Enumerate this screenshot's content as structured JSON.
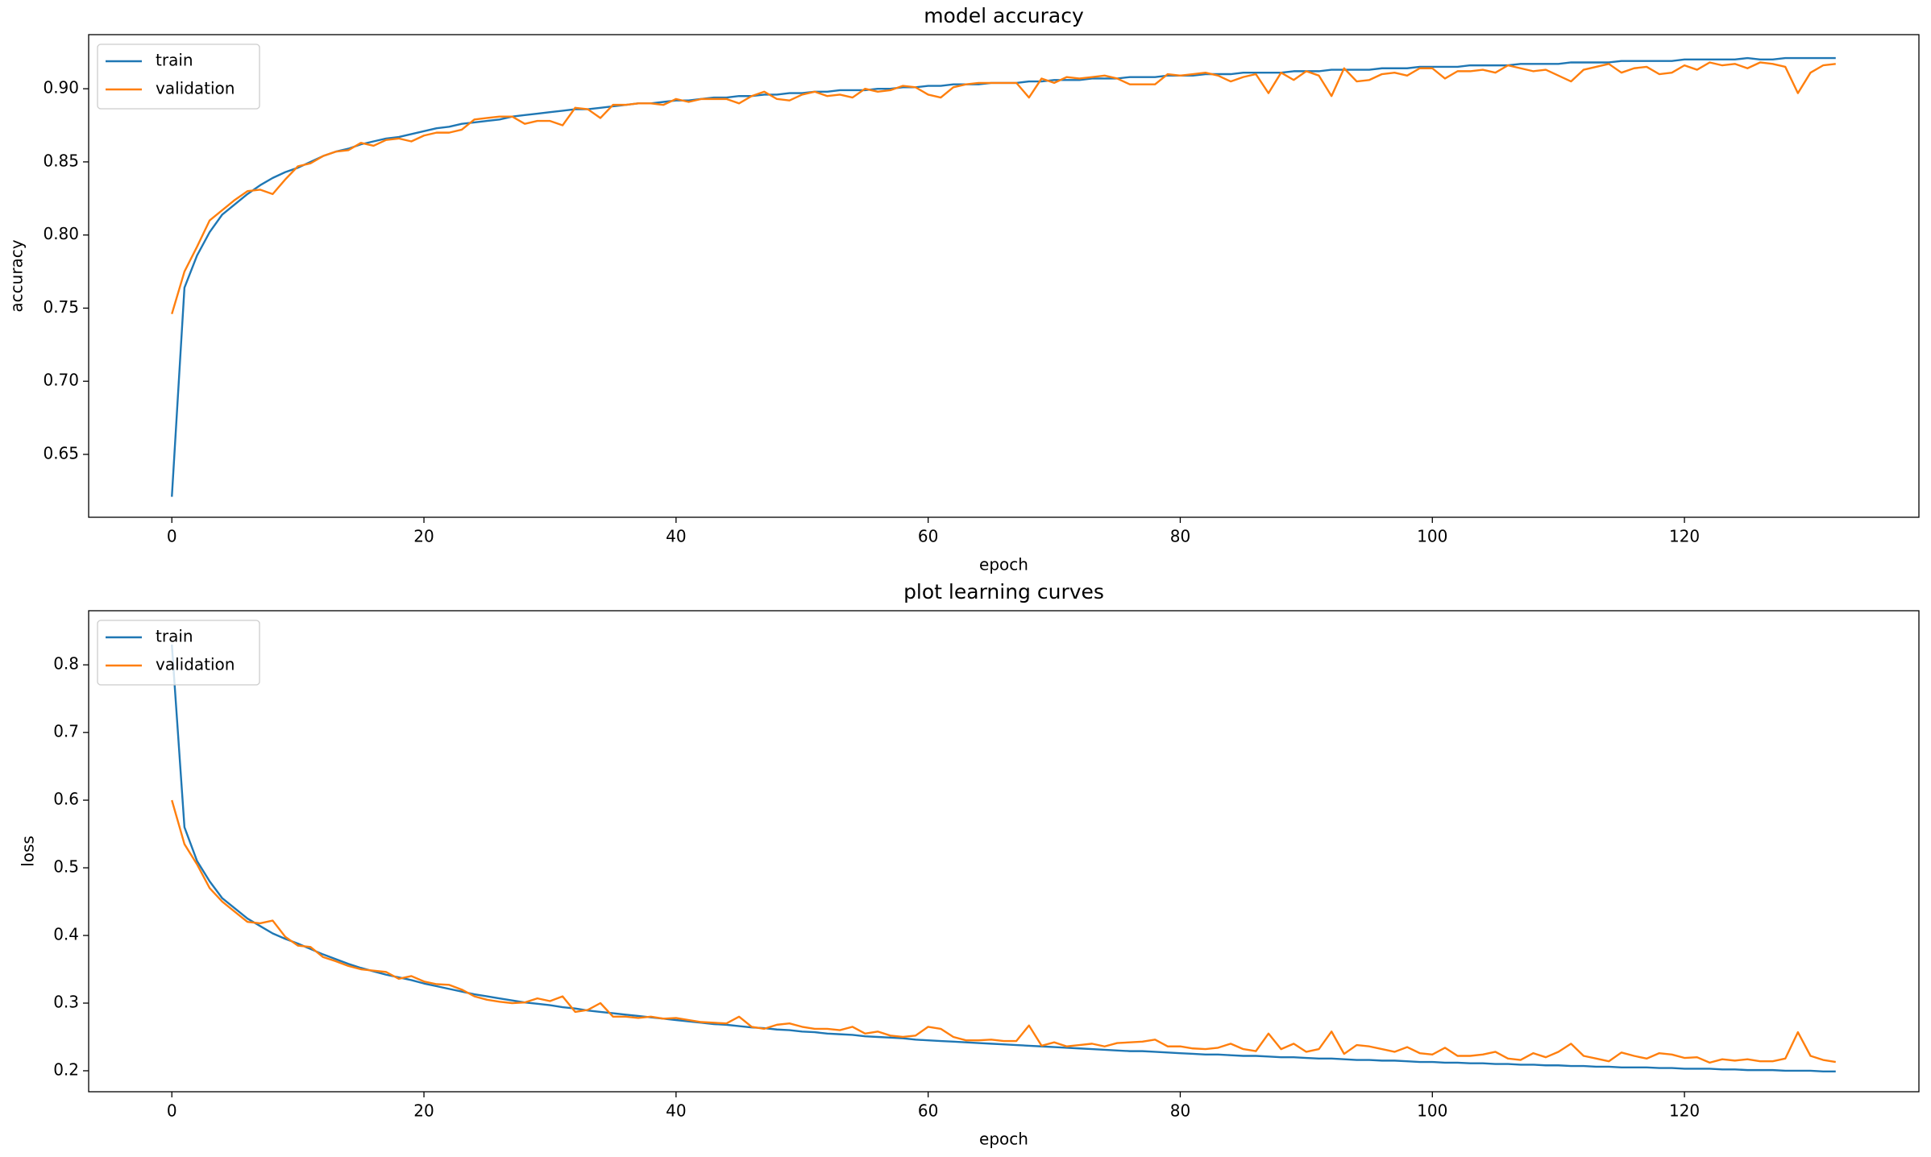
{
  "chart_data": [
    {
      "type": "line",
      "title": "model accuracy",
      "x_label": "epoch",
      "y_label": "accuracy",
      "x": [
        0,
        1,
        2,
        3,
        4,
        5,
        6,
        7,
        8,
        9,
        10,
        11,
        12,
        13,
        14,
        15,
        16,
        17,
        18,
        19,
        20,
        21,
        22,
        23,
        24,
        25,
        26,
        27,
        28,
        29,
        30,
        31,
        32,
        33,
        34,
        35,
        36,
        37,
        38,
        39,
        40,
        41,
        42,
        43,
        44,
        45,
        46,
        47,
        48,
        49,
        50,
        51,
        52,
        53,
        54,
        55,
        56,
        57,
        58,
        59,
        60,
        61,
        62,
        63,
        64,
        65,
        66,
        67,
        68,
        69,
        70,
        71,
        72,
        73,
        74,
        75,
        76,
        77,
        78,
        79,
        80,
        81,
        82,
        83,
        84,
        85,
        86,
        87,
        88,
        89,
        90,
        91,
        92,
        93,
        94,
        95,
        96,
        97,
        98,
        99,
        100,
        101,
        102,
        103,
        104,
        105,
        106,
        107,
        108,
        109,
        110,
        111,
        112,
        113,
        114,
        115,
        116,
        117,
        118,
        119,
        120,
        121,
        122,
        123,
        124,
        125,
        126,
        127,
        128,
        129,
        130,
        131,
        132
      ],
      "series": [
        {
          "name": "train",
          "color": "#1f77b4",
          "values": [
            0.621,
            0.764,
            0.786,
            0.802,
            0.814,
            0.821,
            0.828,
            0.834,
            0.839,
            0.843,
            0.846,
            0.85,
            0.854,
            0.857,
            0.859,
            0.862,
            0.864,
            0.866,
            0.867,
            0.869,
            0.871,
            0.873,
            0.874,
            0.876,
            0.877,
            0.878,
            0.879,
            0.881,
            0.882,
            0.883,
            0.884,
            0.885,
            0.886,
            0.886,
            0.887,
            0.888,
            0.889,
            0.89,
            0.89,
            0.891,
            0.892,
            0.892,
            0.893,
            0.894,
            0.894,
            0.895,
            0.895,
            0.896,
            0.896,
            0.897,
            0.897,
            0.898,
            0.898,
            0.899,
            0.899,
            0.899,
            0.9,
            0.9,
            0.901,
            0.901,
            0.902,
            0.902,
            0.903,
            0.903,
            0.903,
            0.904,
            0.904,
            0.904,
            0.905,
            0.905,
            0.906,
            0.906,
            0.906,
            0.907,
            0.907,
            0.907,
            0.908,
            0.908,
            0.908,
            0.909,
            0.909,
            0.909,
            0.91,
            0.91,
            0.91,
            0.911,
            0.911,
            0.911,
            0.911,
            0.912,
            0.912,
            0.912,
            0.913,
            0.913,
            0.913,
            0.913,
            0.914,
            0.914,
            0.914,
            0.915,
            0.915,
            0.915,
            0.915,
            0.916,
            0.916,
            0.916,
            0.916,
            0.917,
            0.917,
            0.917,
            0.917,
            0.918,
            0.918,
            0.918,
            0.918,
            0.919,
            0.919,
            0.919,
            0.919,
            0.919,
            0.92,
            0.92,
            0.92,
            0.92,
            0.92,
            0.921,
            0.92,
            0.92,
            0.921,
            0.921,
            0.921,
            0.921,
            0.921
          ]
        },
        {
          "name": "validation",
          "color": "#ff7f0e",
          "values": [
            0.746,
            0.775,
            0.792,
            0.81,
            0.817,
            0.824,
            0.83,
            0.831,
            0.828,
            0.838,
            0.847,
            0.849,
            0.854,
            0.857,
            0.858,
            0.863,
            0.861,
            0.865,
            0.866,
            0.864,
            0.868,
            0.87,
            0.87,
            0.872,
            0.879,
            0.88,
            0.881,
            0.881,
            0.876,
            0.878,
            0.878,
            0.875,
            0.887,
            0.886,
            0.88,
            0.889,
            0.889,
            0.89,
            0.89,
            0.889,
            0.893,
            0.891,
            0.893,
            0.893,
            0.893,
            0.89,
            0.895,
            0.898,
            0.893,
            0.892,
            0.896,
            0.898,
            0.895,
            0.896,
            0.894,
            0.9,
            0.898,
            0.899,
            0.902,
            0.901,
            0.896,
            0.894,
            0.901,
            0.903,
            0.904,
            0.904,
            0.904,
            0.904,
            0.894,
            0.907,
            0.904,
            0.908,
            0.907,
            0.908,
            0.909,
            0.907,
            0.903,
            0.903,
            0.903,
            0.91,
            0.909,
            0.91,
            0.911,
            0.909,
            0.905,
            0.908,
            0.91,
            0.897,
            0.911,
            0.906,
            0.912,
            0.909,
            0.895,
            0.914,
            0.905,
            0.906,
            0.91,
            0.911,
            0.909,
            0.914,
            0.914,
            0.907,
            0.912,
            0.912,
            0.913,
            0.911,
            0.916,
            0.914,
            0.912,
            0.913,
            0.909,
            0.905,
            0.913,
            0.915,
            0.917,
            0.911,
            0.914,
            0.915,
            0.91,
            0.911,
            0.916,
            0.913,
            0.918,
            0.916,
            0.917,
            0.914,
            0.918,
            0.917,
            0.915,
            0.897,
            0.911,
            0.916,
            0.917
          ]
        }
      ],
      "xlim": [
        -6.6,
        138.6
      ],
      "xticks": [
        0,
        20,
        40,
        60,
        80,
        100,
        120
      ],
      "ylim": [
        0.607,
        0.937
      ],
      "yticks": [
        0.65,
        {
          "value": 0.7,
          "label": "0.70"
        },
        0.75,
        {
          "value": 0.8,
          "label": "0.80"
        },
        0.85,
        {
          "value": 0.9,
          "label": "0.90"
        }
      ],
      "legend": "upper left",
      "grid": false
    },
    {
      "type": "line",
      "title": "plot learning curves",
      "x_label": "epoch",
      "y_label": "loss",
      "x": [
        0,
        1,
        2,
        3,
        4,
        5,
        6,
        7,
        8,
        9,
        10,
        11,
        12,
        13,
        14,
        15,
        16,
        17,
        18,
        19,
        20,
        21,
        22,
        23,
        24,
        25,
        26,
        27,
        28,
        29,
        30,
        31,
        32,
        33,
        34,
        35,
        36,
        37,
        38,
        39,
        40,
        41,
        42,
        43,
        44,
        45,
        46,
        47,
        48,
        49,
        50,
        51,
        52,
        53,
        54,
        55,
        56,
        57,
        58,
        59,
        60,
        61,
        62,
        63,
        64,
        65,
        66,
        67,
        68,
        69,
        70,
        71,
        72,
        73,
        74,
        75,
        76,
        77,
        78,
        79,
        80,
        81,
        82,
        83,
        84,
        85,
        86,
        87,
        88,
        89,
        90,
        91,
        92,
        93,
        94,
        95,
        96,
        97,
        98,
        99,
        100,
        101,
        102,
        103,
        104,
        105,
        106,
        107,
        108,
        109,
        110,
        111,
        112,
        113,
        114,
        115,
        116,
        117,
        118,
        119,
        120,
        121,
        122,
        123,
        124,
        125,
        126,
        127,
        128,
        129,
        130,
        131,
        132
      ],
      "series": [
        {
          "name": "train",
          "color": "#1f77b4",
          "values": [
            0.83,
            0.56,
            0.51,
            0.48,
            0.455,
            0.44,
            0.425,
            0.414,
            0.403,
            0.395,
            0.388,
            0.38,
            0.372,
            0.365,
            0.358,
            0.352,
            0.347,
            0.342,
            0.338,
            0.334,
            0.329,
            0.325,
            0.321,
            0.317,
            0.313,
            0.31,
            0.307,
            0.304,
            0.301,
            0.299,
            0.297,
            0.294,
            0.292,
            0.289,
            0.287,
            0.285,
            0.283,
            0.281,
            0.279,
            0.277,
            0.275,
            0.273,
            0.271,
            0.269,
            0.268,
            0.266,
            0.264,
            0.263,
            0.261,
            0.26,
            0.258,
            0.257,
            0.255,
            0.254,
            0.253,
            0.251,
            0.25,
            0.249,
            0.248,
            0.246,
            0.245,
            0.244,
            0.243,
            0.242,
            0.241,
            0.24,
            0.239,
            0.238,
            0.237,
            0.236,
            0.235,
            0.234,
            0.233,
            0.232,
            0.231,
            0.23,
            0.229,
            0.229,
            0.228,
            0.227,
            0.226,
            0.225,
            0.224,
            0.224,
            0.223,
            0.222,
            0.222,
            0.221,
            0.22,
            0.22,
            0.219,
            0.218,
            0.218,
            0.217,
            0.216,
            0.216,
            0.215,
            0.215,
            0.214,
            0.213,
            0.213,
            0.212,
            0.212,
            0.211,
            0.211,
            0.21,
            0.21,
            0.209,
            0.209,
            0.208,
            0.208,
            0.207,
            0.207,
            0.206,
            0.206,
            0.205,
            0.205,
            0.205,
            0.204,
            0.204,
            0.203,
            0.203,
            0.203,
            0.202,
            0.202,
            0.201,
            0.201,
            0.201,
            0.2,
            0.2,
            0.2,
            0.199,
            0.199
          ]
        },
        {
          "name": "validation",
          "color": "#ff7f0e",
          "values": [
            0.6,
            0.535,
            0.505,
            0.47,
            0.45,
            0.435,
            0.42,
            0.418,
            0.422,
            0.398,
            0.385,
            0.383,
            0.368,
            0.362,
            0.355,
            0.35,
            0.348,
            0.346,
            0.336,
            0.34,
            0.332,
            0.328,
            0.327,
            0.32,
            0.31,
            0.305,
            0.302,
            0.3,
            0.301,
            0.307,
            0.303,
            0.31,
            0.287,
            0.29,
            0.3,
            0.28,
            0.28,
            0.278,
            0.28,
            0.277,
            0.278,
            0.275,
            0.272,
            0.271,
            0.27,
            0.28,
            0.265,
            0.262,
            0.268,
            0.27,
            0.265,
            0.262,
            0.262,
            0.26,
            0.265,
            0.255,
            0.258,
            0.252,
            0.25,
            0.252,
            0.265,
            0.262,
            0.25,
            0.245,
            0.245,
            0.246,
            0.244,
            0.244,
            0.267,
            0.237,
            0.242,
            0.236,
            0.238,
            0.24,
            0.236,
            0.241,
            0.242,
            0.243,
            0.246,
            0.236,
            0.236,
            0.233,
            0.232,
            0.234,
            0.24,
            0.232,
            0.229,
            0.255,
            0.232,
            0.24,
            0.228,
            0.232,
            0.258,
            0.225,
            0.238,
            0.236,
            0.232,
            0.228,
            0.235,
            0.226,
            0.224,
            0.234,
            0.222,
            0.222,
            0.224,
            0.228,
            0.218,
            0.216,
            0.226,
            0.22,
            0.228,
            0.24,
            0.222,
            0.218,
            0.214,
            0.227,
            0.222,
            0.218,
            0.226,
            0.224,
            0.219,
            0.22,
            0.212,
            0.217,
            0.215,
            0.217,
            0.214,
            0.214,
            0.218,
            0.257,
            0.222,
            0.216,
            0.213
          ]
        }
      ],
      "xlim": [
        -6.6,
        138.6
      ],
      "xticks": [
        0,
        20,
        40,
        60,
        80,
        100,
        120
      ],
      "ylim": [
        0.169,
        0.88
      ],
      "yticks": [
        0.2,
        0.3,
        0.4,
        0.5,
        0.6,
        0.7,
        0.8
      ],
      "legend": "upper left",
      "grid": false
    }
  ]
}
